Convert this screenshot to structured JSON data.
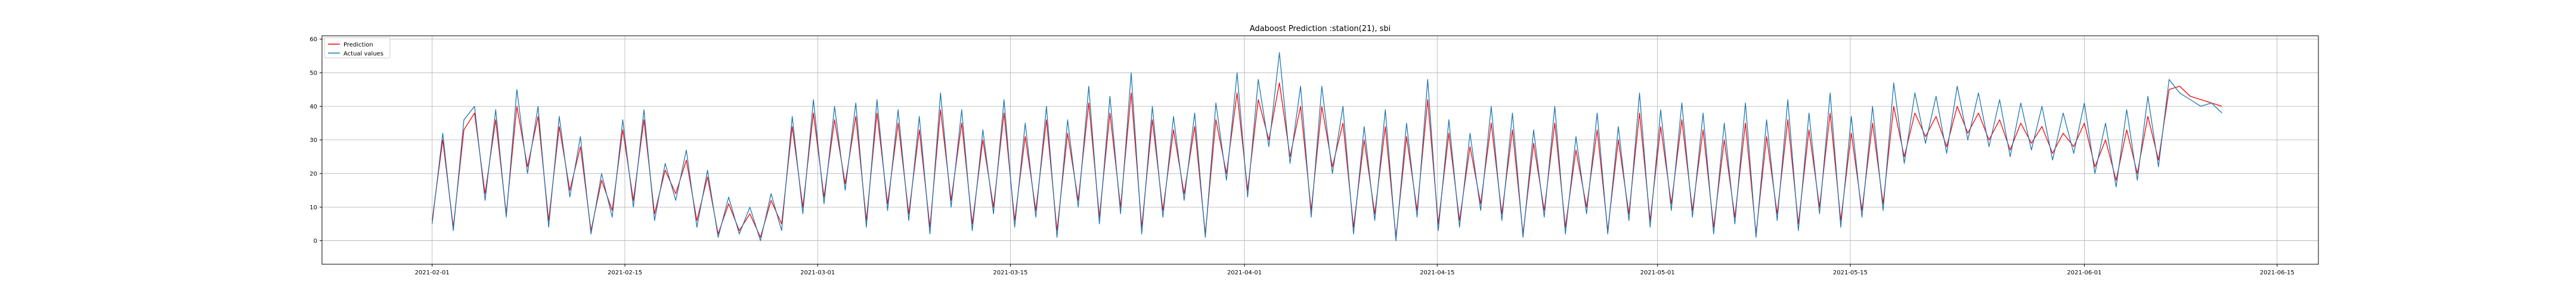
{
  "chart_data": {
    "type": "line",
    "title": "Adaboost Prediction :station(21), sbi",
    "xlabel": "",
    "ylabel": "",
    "x_start": "2021-02-01",
    "x_end": "2021-06-11",
    "xlim": [
      "2021-01-24",
      "2021-06-18"
    ],
    "ylim": [
      -7,
      61
    ],
    "grid": true,
    "legend_position": "top-left",
    "x_ticks": [
      "2021-02-01",
      "2021-02-15",
      "2021-03-01",
      "2021-03-15",
      "2021-04-01",
      "2021-04-15",
      "2021-05-01",
      "2021-05-15",
      "2021-06-01",
      "2021-06-15"
    ],
    "y_ticks": [
      0,
      10,
      20,
      30,
      40,
      50,
      60
    ],
    "series": [
      {
        "name": "Prediction",
        "color": "#ff0000",
        "values": [
          6,
          30,
          4,
          33,
          38,
          14,
          36,
          8,
          40,
          22,
          37,
          6,
          34,
          15,
          28,
          3,
          18,
          9,
          33,
          12,
          36,
          8,
          21,
          14,
          24,
          6,
          19,
          2,
          11,
          3,
          8,
          1,
          12,
          5,
          34,
          10,
          38,
          13,
          36,
          17,
          37,
          6,
          38,
          11,
          35,
          8,
          33,
          4,
          39,
          12,
          35,
          5,
          30,
          10,
          38,
          6,
          31,
          9,
          36,
          3,
          32,
          12,
          41,
          7,
          38,
          10,
          44,
          4,
          36,
          9,
          33,
          14,
          34,
          2,
          36,
          20,
          44,
          15,
          42,
          30,
          47,
          25,
          40,
          9,
          40,
          22,
          35,
          4,
          30,
          8,
          34,
          1,
          31,
          9,
          42,
          5,
          32,
          6,
          28,
          11,
          35,
          8,
          33,
          2,
          29,
          9,
          35,
          4,
          27,
          10,
          33,
          3,
          30,
          8,
          38,
          6,
          34,
          11,
          36,
          9,
          33,
          4,
          30,
          7,
          35,
          2,
          31,
          8,
          36,
          5,
          33,
          10,
          38,
          6,
          32,
          9,
          35,
          11,
          40,
          25,
          38,
          31,
          37,
          28,
          40,
          32,
          38,
          30,
          36,
          27,
          35,
          29,
          34,
          26,
          32,
          28,
          35,
          22,
          30,
          18,
          33,
          20,
          37,
          24,
          45,
          46,
          43,
          42,
          41,
          40
        ],
        "note": ""
      },
      {
        "name": "Actual values",
        "color": "#1f77b4",
        "values": [
          5,
          32,
          3,
          36,
          40,
          12,
          39,
          7,
          45,
          20,
          40,
          4,
          37,
          13,
          31,
          2,
          20,
          7,
          36,
          10,
          39,
          6,
          23,
          12,
          27,
          4,
          21,
          1,
          13,
          2,
          10,
          0,
          14,
          3,
          37,
          8,
          42,
          11,
          40,
          15,
          41,
          4,
          42,
          9,
          39,
          6,
          37,
          2,
          44,
          10,
          39,
          3,
          33,
          8,
          42,
          4,
          35,
          7,
          40,
          1,
          36,
          10,
          46,
          5,
          43,
          8,
          50,
          2,
          40,
          7,
          37,
          12,
          38,
          1,
          41,
          18,
          50,
          13,
          48,
          28,
          56,
          23,
          46,
          7,
          46,
          20,
          40,
          2,
          34,
          6,
          39,
          0,
          35,
          7,
          48,
          3,
          36,
          4,
          32,
          9,
          40,
          6,
          38,
          1,
          33,
          7,
          40,
          2,
          31,
          8,
          38,
          2,
          34,
          6,
          44,
          4,
          39,
          9,
          41,
          7,
          38,
          2,
          35,
          5,
          41,
          1,
          36,
          6,
          42,
          3,
          38,
          8,
          44,
          4,
          37,
          7,
          40,
          9,
          47,
          23,
          44,
          29,
          43,
          26,
          46,
          30,
          44,
          28,
          42,
          25,
          41,
          27,
          40,
          24,
          38,
          26,
          41,
          20,
          35,
          16,
          39,
          18,
          43,
          22,
          48,
          44,
          42,
          40,
          41,
          38
        ]
      }
    ]
  }
}
